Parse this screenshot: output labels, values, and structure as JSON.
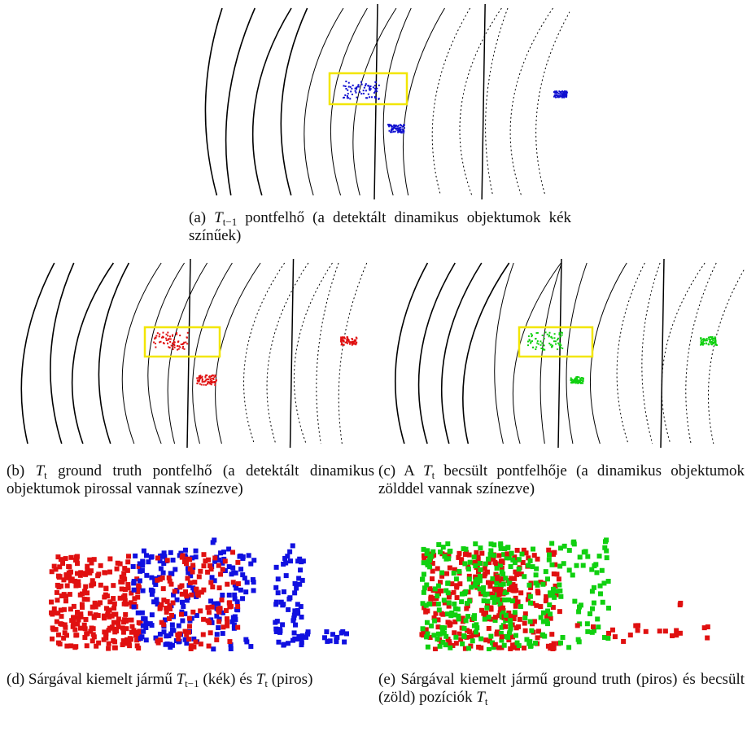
{
  "figures": [
    {
      "runs": [
        {
          "text": "(a) "
        },
        {
          "var": "T",
          "sub": "t−1"
        },
        {
          "text": " pontfelhő (a detektált dinamikus objektumok kék színűek)"
        }
      ]
    },
    {
      "runs": [
        {
          "text": "(b) "
        },
        {
          "var": "T",
          "sub": "t"
        },
        {
          "text": " ground truth pontfelhő (a detektált dinamikus objektumok pirossal vannak színezve)"
        }
      ]
    },
    {
      "runs": [
        {
          "text": "(c) A "
        },
        {
          "var": "T",
          "sub": "t"
        },
        {
          "text": " becsült pontfelhője (a dinamikus objektumok zölddel vannak színezve)"
        }
      ]
    },
    {
      "runs": [
        {
          "text": "(d) Sárgával kiemelt jármű "
        },
        {
          "var": "T",
          "sub": "t−1"
        },
        {
          "text": " (kék) és "
        },
        {
          "var": "T",
          "sub": "t"
        },
        {
          "text": " (piros)"
        }
      ]
    },
    {
      "runs": [
        {
          "text": "(e) Sárgával kiemelt jármű ground truth (piros) és becsült (zöld) pozíciók "
        },
        {
          "var": "T",
          "sub": "t"
        }
      ]
    }
  ]
}
